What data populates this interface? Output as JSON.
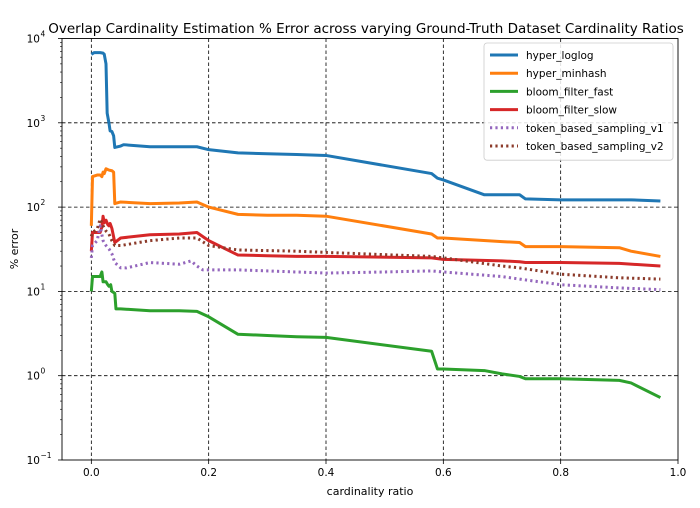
{
  "chart_data": {
    "type": "line",
    "title": "Overlap Cardinality Estimation % Error across varying Ground-Truth Dataset Cardinality Ratios",
    "xlabel": "cardinality ratio",
    "ylabel": "% error",
    "xlim": [
      -0.05,
      1.0
    ],
    "ylim_log10": [
      -1,
      4
    ],
    "y_scale": "log",
    "grid": true,
    "legend_position": "top-right",
    "x_ticks": [
      {
        "value": 0.0,
        "label": "0.0"
      },
      {
        "value": 0.2,
        "label": "0.2"
      },
      {
        "value": 0.4,
        "label": "0.4"
      },
      {
        "value": 0.6,
        "label": "0.6"
      },
      {
        "value": 0.8,
        "label": "0.8"
      },
      {
        "value": 1.0,
        "label": "1.0"
      }
    ],
    "y_ticks": [
      {
        "exp": -1,
        "base": "10",
        "sup": "−1"
      },
      {
        "exp": 0,
        "base": "10",
        "sup": "0"
      },
      {
        "exp": 1,
        "base": "10",
        "sup": "1"
      },
      {
        "exp": 2,
        "base": "10",
        "sup": "2"
      },
      {
        "exp": 3,
        "base": "10",
        "sup": "3"
      },
      {
        "exp": 4,
        "base": "10",
        "sup": "4"
      }
    ],
    "series": [
      {
        "name": "hyper_loglog",
        "color": "#1f77b4",
        "style": "solid",
        "points": [
          [
            0.0,
            6500
          ],
          [
            0.005,
            6800
          ],
          [
            0.01,
            6800
          ],
          [
            0.015,
            6800
          ],
          [
            0.02,
            6700
          ],
          [
            0.022,
            6500
          ],
          [
            0.025,
            5000
          ],
          [
            0.027,
            1300
          ],
          [
            0.03,
            1000
          ],
          [
            0.032,
            800
          ],
          [
            0.035,
            790
          ],
          [
            0.038,
            700
          ],
          [
            0.04,
            510
          ],
          [
            0.05,
            530
          ],
          [
            0.055,
            550
          ],
          [
            0.1,
            520
          ],
          [
            0.15,
            520
          ],
          [
            0.18,
            520
          ],
          [
            0.2,
            480
          ],
          [
            0.25,
            440
          ],
          [
            0.3,
            430
          ],
          [
            0.35,
            420
          ],
          [
            0.4,
            410
          ],
          [
            0.58,
            250
          ],
          [
            0.59,
            220
          ],
          [
            0.6,
            210
          ],
          [
            0.67,
            140
          ],
          [
            0.7,
            140
          ],
          [
            0.73,
            140
          ],
          [
            0.74,
            125
          ],
          [
            0.8,
            122
          ],
          [
            0.9,
            122
          ],
          [
            0.92,
            122
          ],
          [
            0.97,
            118
          ]
        ]
      },
      {
        "name": "hyper_minhash",
        "color": "#ff7f0e",
        "style": "solid",
        "points": [
          [
            0.0,
            60
          ],
          [
            0.002,
            230
          ],
          [
            0.01,
            240
          ],
          [
            0.015,
            240
          ],
          [
            0.018,
            230
          ],
          [
            0.02,
            260
          ],
          [
            0.022,
            250
          ],
          [
            0.025,
            285
          ],
          [
            0.03,
            275
          ],
          [
            0.035,
            270
          ],
          [
            0.038,
            260
          ],
          [
            0.04,
            110
          ],
          [
            0.05,
            115
          ],
          [
            0.1,
            110
          ],
          [
            0.15,
            112
          ],
          [
            0.18,
            115
          ],
          [
            0.2,
            100
          ],
          [
            0.25,
            82
          ],
          [
            0.3,
            80
          ],
          [
            0.35,
            80
          ],
          [
            0.4,
            78
          ],
          [
            0.58,
            48
          ],
          [
            0.59,
            43
          ],
          [
            0.6,
            43
          ],
          [
            0.7,
            39
          ],
          [
            0.73,
            38
          ],
          [
            0.74,
            34
          ],
          [
            0.8,
            34
          ],
          [
            0.9,
            33
          ],
          [
            0.92,
            30
          ],
          [
            0.97,
            26
          ]
        ]
      },
      {
        "name": "bloom_filter_fast",
        "color": "#2ca02c",
        "style": "solid",
        "points": [
          [
            0.0,
            10
          ],
          [
            0.002,
            15
          ],
          [
            0.01,
            15
          ],
          [
            0.015,
            15
          ],
          [
            0.018,
            17
          ],
          [
            0.02,
            13
          ],
          [
            0.025,
            13
          ],
          [
            0.028,
            12
          ],
          [
            0.03,
            11.5
          ],
          [
            0.033,
            12
          ],
          [
            0.035,
            10
          ],
          [
            0.04,
            9.5
          ],
          [
            0.042,
            6.2
          ],
          [
            0.05,
            6.2
          ],
          [
            0.1,
            5.9
          ],
          [
            0.15,
            5.9
          ],
          [
            0.18,
            5.8
          ],
          [
            0.2,
            5.0
          ],
          [
            0.25,
            3.1
          ],
          [
            0.3,
            3.0
          ],
          [
            0.35,
            2.9
          ],
          [
            0.4,
            2.85
          ],
          [
            0.58,
            1.95
          ],
          [
            0.59,
            1.2
          ],
          [
            0.6,
            1.2
          ],
          [
            0.67,
            1.15
          ],
          [
            0.7,
            1.05
          ],
          [
            0.73,
            0.98
          ],
          [
            0.74,
            0.92
          ],
          [
            0.8,
            0.92
          ],
          [
            0.9,
            0.88
          ],
          [
            0.92,
            0.82
          ],
          [
            0.97,
            0.55
          ]
        ]
      },
      {
        "name": "bloom_filter_slow",
        "color": "#d62728",
        "style": "solid",
        "points": [
          [
            0.0,
            30
          ],
          [
            0.002,
            50
          ],
          [
            0.01,
            50
          ],
          [
            0.015,
            50
          ],
          [
            0.018,
            58
          ],
          [
            0.02,
            78
          ],
          [
            0.022,
            65
          ],
          [
            0.025,
            70
          ],
          [
            0.028,
            62
          ],
          [
            0.03,
            60
          ],
          [
            0.032,
            64
          ],
          [
            0.035,
            56
          ],
          [
            0.04,
            38
          ],
          [
            0.05,
            43
          ],
          [
            0.1,
            47
          ],
          [
            0.15,
            48
          ],
          [
            0.18,
            50
          ],
          [
            0.2,
            40
          ],
          [
            0.25,
            27
          ],
          [
            0.3,
            26.5
          ],
          [
            0.35,
            26
          ],
          [
            0.4,
            26
          ],
          [
            0.58,
            25
          ],
          [
            0.6,
            24
          ],
          [
            0.7,
            23
          ],
          [
            0.73,
            22.5
          ],
          [
            0.74,
            22
          ],
          [
            0.8,
            22
          ],
          [
            0.9,
            21.5
          ],
          [
            0.97,
            20
          ]
        ]
      },
      {
        "name": "token_based_sampling_v1",
        "color": "#9467bd",
        "style": "dotted",
        "points": [
          [
            0.0,
            25
          ],
          [
            0.002,
            35
          ],
          [
            0.01,
            40
          ],
          [
            0.015,
            60
          ],
          [
            0.02,
            40
          ],
          [
            0.025,
            35
          ],
          [
            0.03,
            32
          ],
          [
            0.035,
            28
          ],
          [
            0.04,
            22
          ],
          [
            0.05,
            19
          ],
          [
            0.06,
            19
          ],
          [
            0.1,
            22
          ],
          [
            0.15,
            21
          ],
          [
            0.17,
            23
          ],
          [
            0.18,
            20
          ],
          [
            0.19,
            18
          ],
          [
            0.25,
            18
          ],
          [
            0.3,
            17.5
          ],
          [
            0.4,
            16.5
          ],
          [
            0.5,
            17
          ],
          [
            0.58,
            17.5
          ],
          [
            0.6,
            17
          ],
          [
            0.7,
            15
          ],
          [
            0.73,
            14
          ],
          [
            0.8,
            12
          ],
          [
            0.9,
            11
          ],
          [
            0.97,
            10.5
          ]
        ]
      },
      {
        "name": "token_based_sampling_v2",
        "color": "#8c3b2b",
        "style": "dotted",
        "points": [
          [
            0.0,
            45
          ],
          [
            0.002,
            50
          ],
          [
            0.01,
            55
          ],
          [
            0.015,
            72
          ],
          [
            0.02,
            60
          ],
          [
            0.025,
            52
          ],
          [
            0.03,
            48
          ],
          [
            0.035,
            40
          ],
          [
            0.04,
            35
          ],
          [
            0.05,
            35
          ],
          [
            0.1,
            40
          ],
          [
            0.15,
            43
          ],
          [
            0.18,
            43
          ],
          [
            0.2,
            35
          ],
          [
            0.25,
            31
          ],
          [
            0.3,
            30.5
          ],
          [
            0.35,
            30
          ],
          [
            0.4,
            29
          ],
          [
            0.58,
            26
          ],
          [
            0.6,
            25
          ],
          [
            0.7,
            20
          ],
          [
            0.73,
            19
          ],
          [
            0.8,
            16
          ],
          [
            0.9,
            14.5
          ],
          [
            0.97,
            14
          ]
        ]
      }
    ]
  }
}
